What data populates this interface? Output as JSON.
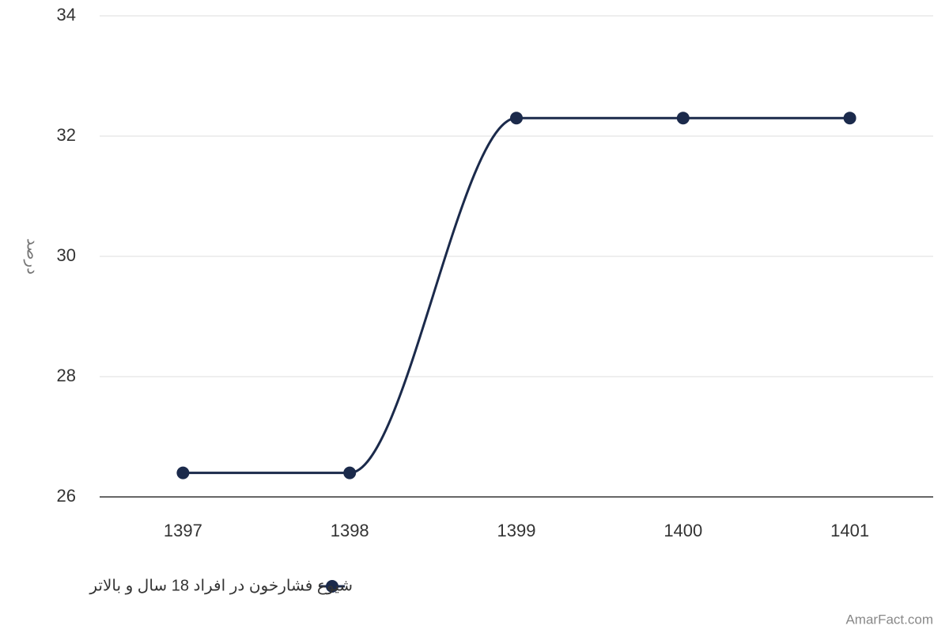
{
  "chart_data": {
    "type": "line",
    "y_label": "درصد",
    "categories": [
      "1397",
      "1398",
      "1399",
      "1400",
      "1401"
    ],
    "series": [
      {
        "name": "شیوع فشارخون در افراد 18 سال و بالاتر",
        "color": "#1b2a4b",
        "values": [
          26.4,
          26.4,
          32.3,
          32.3,
          32.3
        ]
      }
    ],
    "ylim": [
      26,
      34
    ],
    "yticks": [
      26,
      28,
      30,
      32,
      34
    ],
    "grid": true,
    "smooth": true,
    "legend": "bottom",
    "watermark": "AmarFact.com"
  }
}
